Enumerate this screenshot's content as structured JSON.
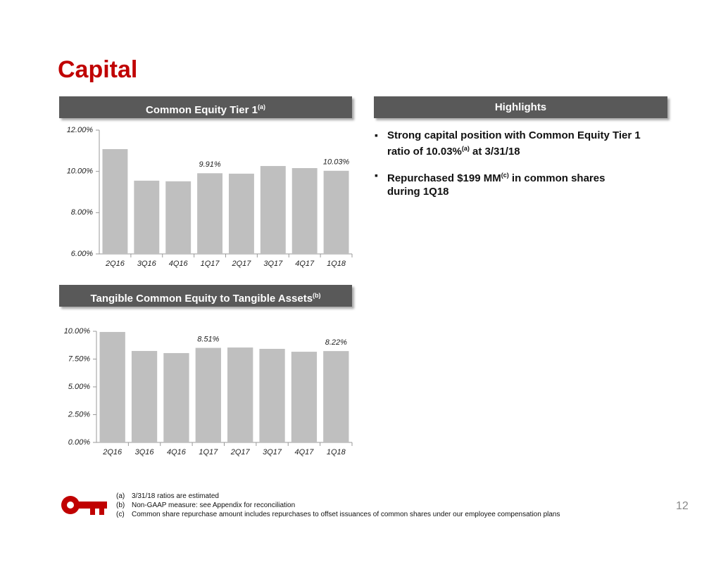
{
  "title": "Capital",
  "highlights": {
    "header": "Highlights",
    "bullets": [
      [
        "Strong capital position with Common Equity Tier 1 ratio of 10.03%",
        "(a)",
        " at 3/31/18"
      ],
      [
        "Repurchased $199 MM",
        "(c)",
        " in common shares during 1Q18"
      ]
    ]
  },
  "chart_data": [
    {
      "type": "bar",
      "title": "Common Equity Tier 1",
      "title_note": "(a)",
      "categories": [
        "2Q16",
        "3Q16",
        "4Q16",
        "1Q17",
        "2Q17",
        "3Q17",
        "4Q17",
        "1Q18"
      ],
      "values": [
        11.08,
        9.55,
        9.52,
        9.91,
        9.89,
        10.26,
        10.16,
        10.03
      ],
      "value_labels": [
        null,
        null,
        null,
        "9.91%",
        null,
        null,
        null,
        "10.03%"
      ],
      "color": "#bfbfbf",
      "grid": false,
      "ylim": [
        6,
        12
      ],
      "yticks": [
        {
          "value": 6,
          "label": "6.00%"
        },
        {
          "value": 8,
          "label": "8.00%"
        },
        {
          "value": 10,
          "label": "10.00%"
        },
        {
          "value": 12,
          "label": "12.00%"
        }
      ]
    },
    {
      "type": "bar",
      "title": "Tangible Common Equity to Tangible Assets",
      "title_note": "(b)",
      "categories": [
        "2Q16",
        "3Q16",
        "4Q16",
        "1Q17",
        "2Q17",
        "3Q17",
        "4Q17",
        "1Q18"
      ],
      "values": [
        9.94,
        8.23,
        8.04,
        8.51,
        8.54,
        8.42,
        8.16,
        8.22
      ],
      "value_labels": [
        null,
        null,
        null,
        "8.51%",
        null,
        null,
        null,
        "8.22%"
      ],
      "color": "#bfbfbf",
      "grid": false,
      "ylim": [
        0,
        10
      ],
      "yticks": [
        {
          "value": 0,
          "label": "0.00%"
        },
        {
          "value": 2.5,
          "label": "2.50%"
        },
        {
          "value": 5,
          "label": "5.00%"
        },
        {
          "value": 7.5,
          "label": "7.50%"
        },
        {
          "value": 10,
          "label": "10.00%"
        }
      ]
    }
  ],
  "footnotes": [
    [
      "(a)",
      "3/31/18 ratios are estimated"
    ],
    [
      "(b)",
      "Non-GAAP measure: see Appendix for reconciliation"
    ],
    [
      "(c)",
      "Common share repurchase amount includes repurchases to offset issuances of common shares under our employee compensation plans"
    ]
  ],
  "page_number": "12"
}
